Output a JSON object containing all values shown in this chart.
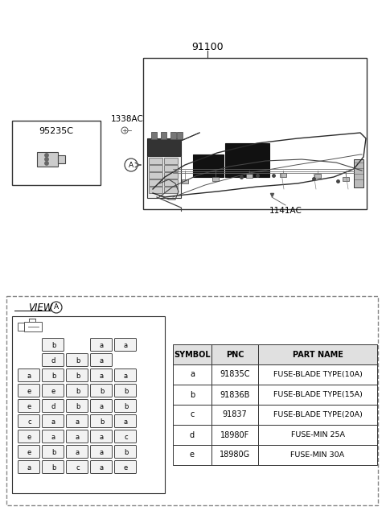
{
  "bg_color": "#ffffff",
  "label_91100": "91100",
  "label_1338AC": "1338AC",
  "label_1141AC": "1141AC",
  "label_95235C": "95235C",
  "view_label": "VIEW",
  "view_circle": "A",
  "table_headers": [
    "SYMBOL",
    "PNC",
    "PART NAME"
  ],
  "table_rows": [
    [
      "a",
      "91835C",
      "FUSE-BLADE TYPE(10A)"
    ],
    [
      "b",
      "91836B",
      "FUSE-BLADE TYPE(15A)"
    ],
    [
      "c",
      "91837",
      "FUSE-BLADE TYPE(20A)"
    ],
    [
      "d",
      "18980F",
      "FUSE-MIN 25A"
    ],
    [
      "e",
      "18980G",
      "FUSE-MIN 30A"
    ]
  ],
  "fuse_grid": [
    [
      "",
      "b",
      "",
      "a",
      "a"
    ],
    [
      "",
      "d",
      "b",
      "a",
      ""
    ],
    [
      "a",
      "b",
      "b",
      "a",
      "a"
    ],
    [
      "e",
      "e",
      "b",
      "b",
      "b"
    ],
    [
      "e",
      "d",
      "b",
      "a",
      "b"
    ],
    [
      "c",
      "a",
      "a",
      "b",
      "a"
    ],
    [
      "e",
      "a",
      "a",
      "a",
      "c"
    ],
    [
      "e",
      "b",
      "a",
      "a",
      "b"
    ],
    [
      "a",
      "b",
      "c",
      "a",
      "e"
    ]
  ],
  "text_color": "#000000",
  "line_color": "#333333"
}
